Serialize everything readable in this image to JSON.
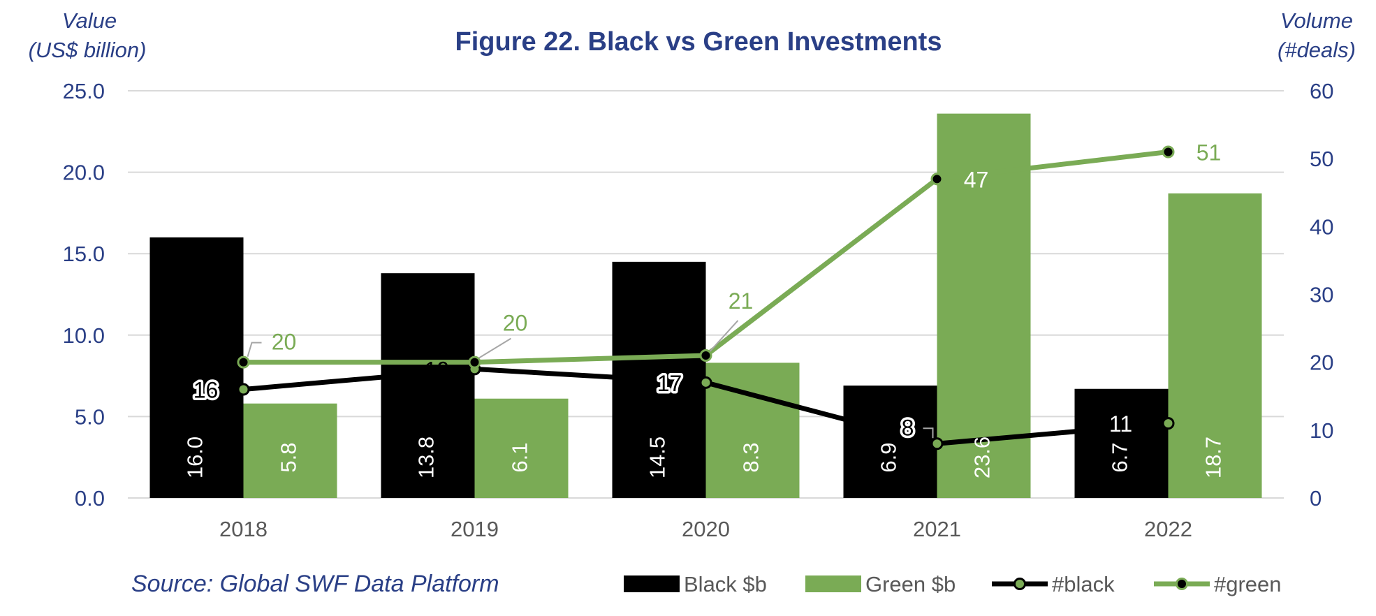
{
  "chart_data": {
    "type": "bar",
    "title": "Figure 22. Black vs Green Investments",
    "y_left_label_line1": "Value",
    "y_left_label_line2": "(US$ billion)",
    "y_right_label_line1": "Volume",
    "y_right_label_line2": "(#deals)",
    "categories": [
      "2018",
      "2019",
      "2020",
      "2021",
      "2022"
    ],
    "ylim_left": [
      0,
      25
    ],
    "ylim_right": [
      0,
      60
    ],
    "y_left_ticks": [
      "0.0",
      "5.0",
      "10.0",
      "15.0",
      "20.0",
      "25.0"
    ],
    "y_right_ticks": [
      "0",
      "10",
      "20",
      "30",
      "40",
      "50",
      "60"
    ],
    "bar_series": [
      {
        "name": "Black $b",
        "color": "#000000",
        "values": [
          16.0,
          13.8,
          14.5,
          6.9,
          6.7
        ],
        "labels": [
          "16.0",
          "13.8",
          "14.5",
          "6.9",
          "6.7"
        ]
      },
      {
        "name": "Green $b",
        "color": "#7aab55",
        "values": [
          5.8,
          6.1,
          8.3,
          23.6,
          18.7
        ],
        "labels": [
          "5.8",
          "6.1",
          "8.3",
          "23.6",
          "18.7"
        ]
      }
    ],
    "line_series": [
      {
        "name": "#black",
        "color": "#000000",
        "marker_fill": "#7aab55",
        "values": [
          16,
          19,
          17,
          8,
          11
        ],
        "labels": [
          "16",
          "19",
          "17",
          "8",
          "11"
        ]
      },
      {
        "name": "#green",
        "color": "#7aab55",
        "marker_fill": "#000000",
        "values": [
          20,
          20,
          21,
          47,
          51
        ],
        "labels": [
          "20",
          "20",
          "21",
          "47",
          "51"
        ]
      }
    ],
    "grid": true,
    "legend_position": "bottom-right"
  },
  "source": "Source: Global SWF Data Platform",
  "colors": {
    "navy": "#2a3f86",
    "green": "#7aab55",
    "black": "#000000",
    "grid": "#d9d9d9",
    "axis_text": "#595959"
  }
}
